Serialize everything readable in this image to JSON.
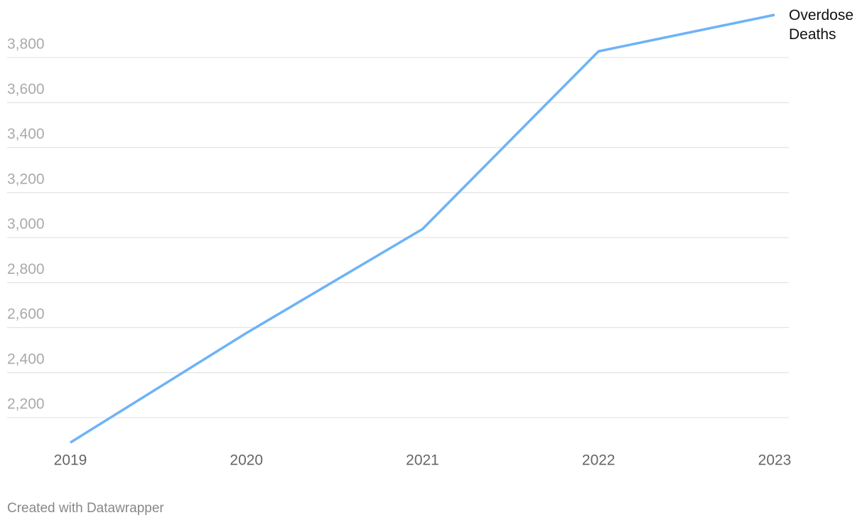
{
  "chart_data": {
    "type": "line",
    "x": [
      2019,
      2020,
      2021,
      2022,
      2023
    ],
    "xlim": [
      2019,
      2023
    ],
    "xticks": [
      2019,
      2020,
      2021,
      2022,
      2023
    ],
    "series": [
      {
        "name": "Overdose Deaths",
        "color": "#6db3f7",
        "values": [
          2089,
          2576,
          3038,
          3828,
          3990
        ]
      }
    ],
    "ylim": [
      2080,
      4000
    ],
    "yticks": [
      {
        "value": 2200,
        "label": "2,200"
      },
      {
        "value": 2400,
        "label": "2,400"
      },
      {
        "value": 2600,
        "label": "2,600"
      },
      {
        "value": 2800,
        "label": "2,800"
      },
      {
        "value": 3000,
        "label": "3,000"
      },
      {
        "value": 3200,
        "label": "3,200"
      },
      {
        "value": 3400,
        "label": "3,400"
      },
      {
        "value": 3600,
        "label": "3,600"
      },
      {
        "value": 3800,
        "label": "3,800"
      }
    ],
    "grid": true,
    "source": "Created with Datawrapper"
  }
}
